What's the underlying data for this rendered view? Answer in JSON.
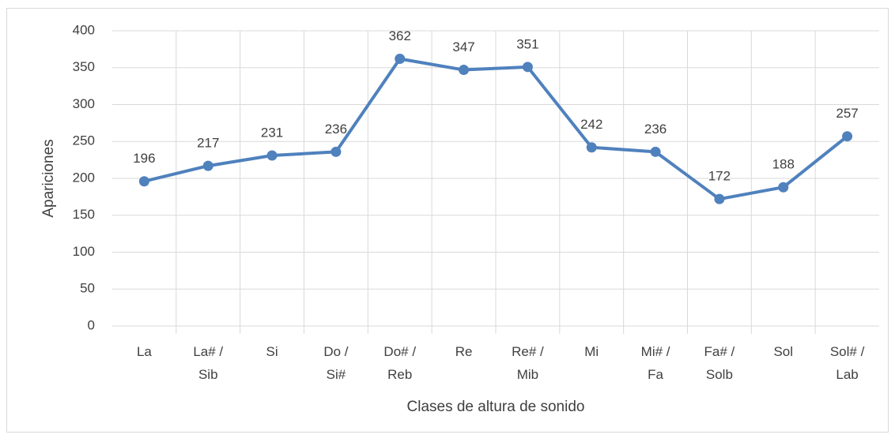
{
  "chart_data": {
    "type": "line",
    "x_label": "Clases de altura de sonido",
    "y_label": "Apariciones",
    "categories": [
      "La",
      "La# /\nSib",
      "Si",
      "Do /\nSi#",
      "Do# /\nReb",
      "Re",
      "Re# /\nMib",
      "Mi",
      "Mi# /\nFa",
      "Fa# /\nSolb",
      "Sol",
      "Sol# /\nLab"
    ],
    "series": [
      {
        "color": "#4f81bd",
        "values": [
          196,
          217,
          231,
          236,
          362,
          347,
          351,
          242,
          236,
          172,
          188,
          257
        ]
      }
    ],
    "ylim": [
      0,
      400
    ],
    "yticks": [
      0,
      50,
      100,
      150,
      200,
      250,
      300,
      350,
      400
    ],
    "grid": true
  }
}
